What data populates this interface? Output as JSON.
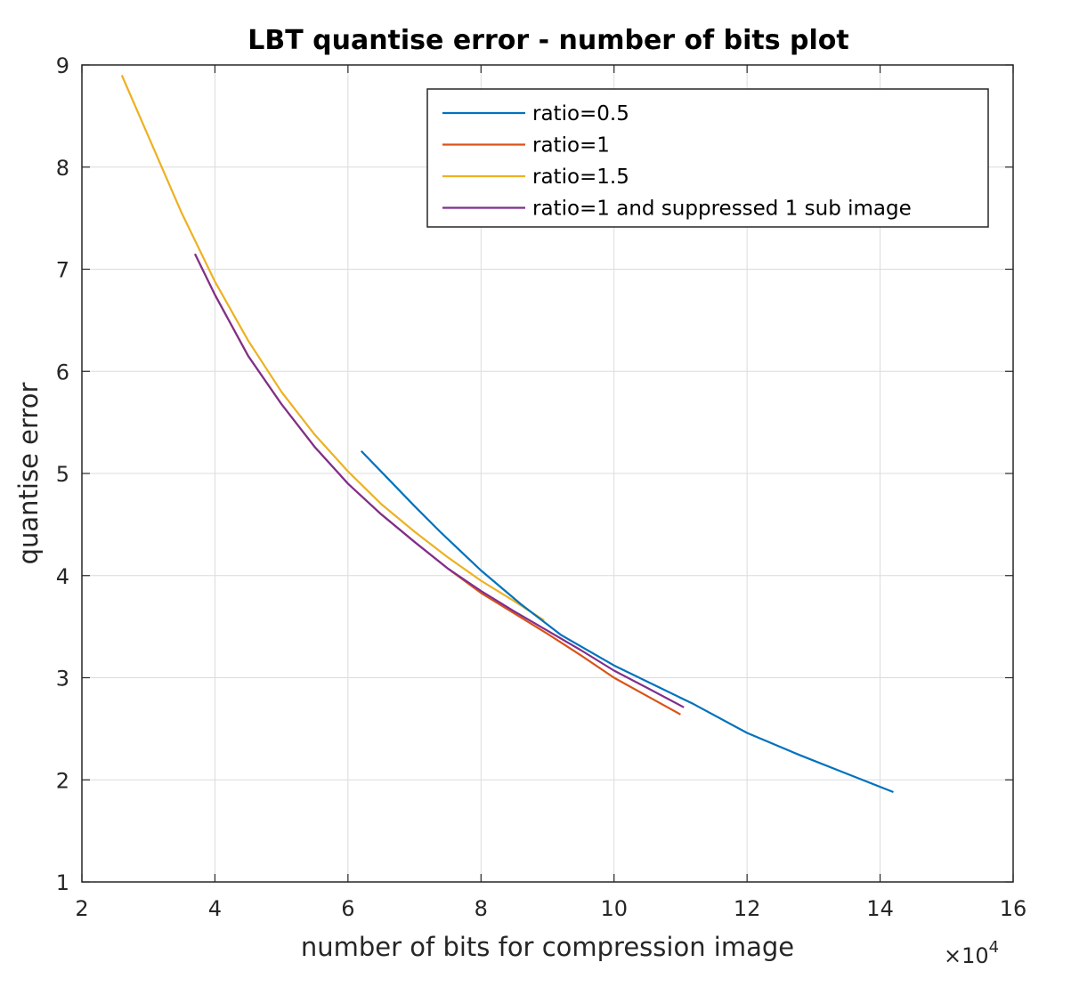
{
  "chart_data": {
    "type": "line",
    "title": "LBT quantise error - number of bits plot",
    "xlabel": "number of bits for compression image",
    "ylabel": "quantise error",
    "x_exponent_base": "×10",
    "x_exponent_power": "4",
    "xlim": [
      2,
      16
    ],
    "ylim": [
      1,
      9
    ],
    "xticks": [
      2,
      4,
      6,
      8,
      10,
      12,
      14,
      16
    ],
    "yticks": [
      1,
      2,
      3,
      4,
      5,
      6,
      7,
      8,
      9
    ],
    "grid": true,
    "legend_position": "top-right",
    "series": [
      {
        "name": "ratio=0.5",
        "color": "#0072BD",
        "x": [
          6.2,
          6.6,
          7.0,
          7.4,
          8.0,
          8.6,
          9.2,
          10.0,
          10.6,
          11.2,
          12.0,
          12.8,
          13.5,
          14.2
        ],
        "y": [
          5.22,
          4.95,
          4.68,
          4.42,
          4.05,
          3.72,
          3.42,
          3.12,
          2.93,
          2.74,
          2.46,
          2.24,
          2.06,
          1.88
        ]
      },
      {
        "name": "ratio=1",
        "color": "#D95319",
        "x": [
          3.7,
          4.0,
          4.5,
          5.0,
          5.5,
          6.0,
          6.5,
          7.0,
          7.5,
          8.0,
          8.5,
          9.0,
          9.5,
          10.0,
          10.5,
          11.0
        ],
        "y": [
          7.15,
          6.75,
          6.15,
          5.68,
          5.26,
          4.9,
          4.6,
          4.33,
          4.07,
          3.83,
          3.63,
          3.43,
          3.22,
          3.0,
          2.82,
          2.64
        ]
      },
      {
        "name": "ratio=1.5",
        "color": "#EDB120",
        "x": [
          2.6,
          3.0,
          3.5,
          4.0,
          4.5,
          5.0,
          5.5,
          6.0,
          6.5,
          7.0,
          7.5,
          8.0,
          8.5,
          8.95
        ],
        "y": [
          8.9,
          8.3,
          7.55,
          6.88,
          6.3,
          5.8,
          5.38,
          5.02,
          4.7,
          4.43,
          4.18,
          3.95,
          3.75,
          3.56
        ]
      },
      {
        "name": "ratio=1 and suppressed 1 sub image",
        "color": "#7E2F8E",
        "x": [
          3.7,
          4.0,
          4.5,
          5.0,
          5.5,
          6.0,
          6.5,
          7.0,
          7.5,
          8.0,
          8.5,
          9.0,
          9.5,
          10.0,
          10.5,
          11.05
        ],
        "y": [
          7.15,
          6.75,
          6.15,
          5.68,
          5.26,
          4.9,
          4.6,
          4.33,
          4.07,
          3.85,
          3.65,
          3.46,
          3.27,
          3.07,
          2.9,
          2.71
        ]
      }
    ]
  }
}
